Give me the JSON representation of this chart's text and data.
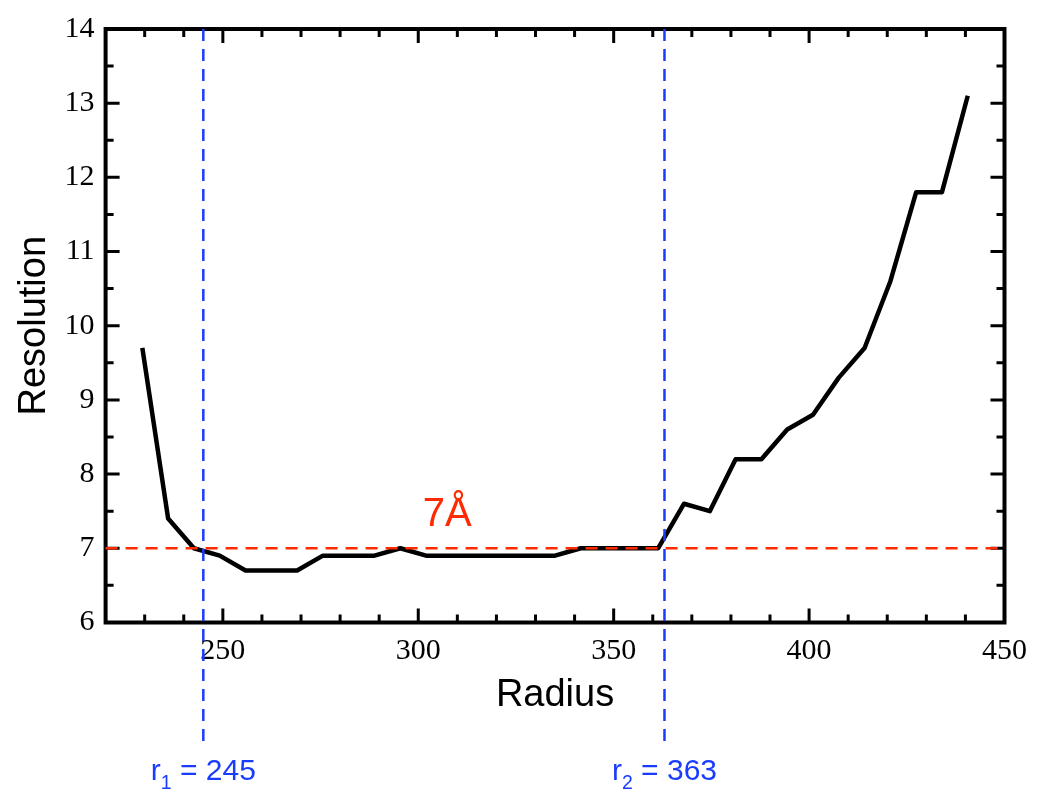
{
  "chart_data": {
    "type": "line",
    "xlabel": "Radius",
    "ylabel": "Resolution",
    "x": [
      229.4,
      236,
      242.6,
      249.2,
      255.8,
      262.4,
      269,
      275.6,
      282.2,
      288.8,
      295.4,
      302,
      308.6,
      315.2,
      321.8,
      328.4,
      335,
      341.6,
      348.2,
      354.8,
      361.4,
      368,
      374.6,
      381.2,
      387.8,
      394.4,
      401,
      407.6,
      414.2,
      420.8,
      427.4,
      434,
      440.6
    ],
    "series": [
      {
        "color": "#000000",
        "values": [
          9.7,
          7.4,
          7.0,
          6.9,
          6.7,
          6.7,
          6.7,
          6.9,
          6.9,
          6.9,
          7.0,
          6.9,
          6.9,
          6.9,
          6.9,
          6.9,
          6.9,
          7.0,
          7.0,
          7.0,
          7.0,
          7.6,
          7.5,
          8.2,
          8.2,
          8.6,
          8.8,
          9.3,
          9.7,
          10.6,
          11.8,
          11.8,
          13.1
        ]
      }
    ],
    "xlim": [
      220,
      450
    ],
    "xticks": [
      {
        "value": 230,
        "label": null
      },
      {
        "value": 240,
        "label": null
      },
      250,
      {
        "value": 260,
        "label": null
      },
      {
        "value": 270,
        "label": null
      },
      {
        "value": 280,
        "label": null
      },
      {
        "value": 290,
        "label": null
      },
      300,
      {
        "value": 310,
        "label": null
      },
      {
        "value": 320,
        "label": null
      },
      {
        "value": 330,
        "label": null
      },
      {
        "value": 340,
        "label": null
      },
      350,
      {
        "value": 360,
        "label": null
      },
      {
        "value": 370,
        "label": null
      },
      {
        "value": 380,
        "label": null
      },
      {
        "value": 390,
        "label": null
      },
      400,
      {
        "value": 410,
        "label": null
      },
      {
        "value": 420,
        "label": null
      },
      {
        "value": 430,
        "label": null
      },
      {
        "value": 440,
        "label": null
      },
      450
    ],
    "ylim": [
      6,
      14
    ],
    "yticks": [
      6,
      {
        "value": 6.5,
        "label": null
      },
      7,
      {
        "value": 7.5,
        "label": null
      },
      8,
      {
        "value": 8.5,
        "label": null
      },
      9,
      {
        "value": 9.5,
        "label": null
      },
      10,
      {
        "value": 10.5,
        "label": null
      },
      11,
      {
        "value": 11.5,
        "label": null
      },
      12,
      {
        "value": 12.5,
        "label": null
      },
      13,
      {
        "value": 13.5,
        "label": null
      },
      14
    ],
    "grid": false,
    "legend": false,
    "marker": "none",
    "line_style": "solid",
    "ref_lines": [
      {
        "axis": "y",
        "value": 7,
        "label": "7Å",
        "color": "#ff2a00",
        "line_style": "dashed"
      },
      {
        "axis": "x",
        "value": 245,
        "label": "r$_{1}$ = 245",
        "color": "#1a3cff",
        "line_style": "dashed"
      },
      {
        "axis": "x",
        "value": 363,
        "label": "r$_{2}$ = 363",
        "color": "#1a3cff",
        "line_style": "dashed"
      }
    ]
  }
}
